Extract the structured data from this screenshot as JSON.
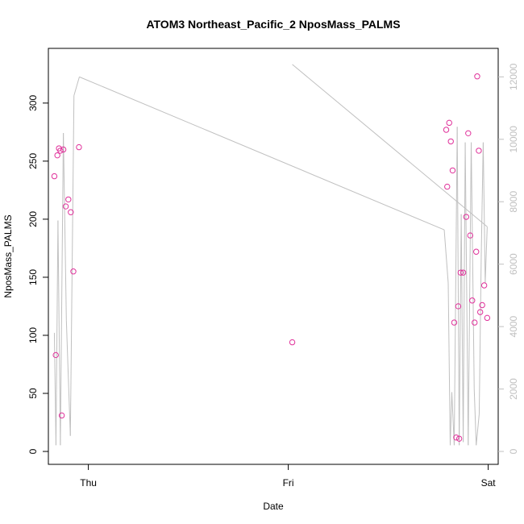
{
  "chart_data": {
    "type": "scatter",
    "title": "ATOM3 Northeast_Pacific_2 NposMass_PALMS",
    "xlabel": "Date",
    "ylabel": "NposMass_PALMS",
    "x_ticks": [
      "Thu",
      "Fri",
      "Sat"
    ],
    "x_tick_days": [
      0,
      1,
      2
    ],
    "xlim_days": [
      -0.2,
      2.05
    ],
    "ylim": [
      0,
      336
    ],
    "y_ticks": [
      0,
      50,
      100,
      150,
      200,
      250,
      300
    ],
    "y2lim": [
      0,
      12500
    ],
    "y2_ticks": [
      0,
      2000,
      4000,
      6000,
      8000,
      10000,
      12000
    ],
    "grid": false,
    "legend": "none",
    "colors": {
      "points": "#e0309a",
      "line": "#c0c0c0",
      "axis": "#000000",
      "axis_right": "#c0c0c0"
    },
    "series": [
      {
        "type": "scatter",
        "axis": "left",
        "points": [
          {
            "x": -0.17,
            "y": 237
          },
          {
            "x": -0.163,
            "y": 83
          },
          {
            "x": -0.155,
            "y": 255
          },
          {
            "x": -0.147,
            "y": 261
          },
          {
            "x": -0.14,
            "y": 259
          },
          {
            "x": -0.133,
            "y": 31
          },
          {
            "x": -0.125,
            "y": 260
          },
          {
            "x": -0.113,
            "y": 211
          },
          {
            "x": -0.1,
            "y": 217
          },
          {
            "x": -0.088,
            "y": 206
          },
          {
            "x": -0.075,
            "y": 155
          },
          {
            "x": -0.047,
            "y": 262
          },
          {
            "x": 1.02,
            "y": 94
          },
          {
            "x": 1.79,
            "y": 277
          },
          {
            "x": 1.795,
            "y": 228
          },
          {
            "x": 1.805,
            "y": 283
          },
          {
            "x": 1.813,
            "y": 267
          },
          {
            "x": 1.822,
            "y": 242
          },
          {
            "x": 1.83,
            "y": 111
          },
          {
            "x": 1.84,
            "y": 12
          },
          {
            "x": 1.85,
            "y": 125
          },
          {
            "x": 1.855,
            "y": 11
          },
          {
            "x": 1.862,
            "y": 154
          },
          {
            "x": 1.875,
            "y": 154
          },
          {
            "x": 1.89,
            "y": 202
          },
          {
            "x": 1.9,
            "y": 274
          },
          {
            "x": 1.91,
            "y": 186
          },
          {
            "x": 1.92,
            "y": 130
          },
          {
            "x": 1.932,
            "y": 111
          },
          {
            "x": 1.94,
            "y": 172
          },
          {
            "x": 1.945,
            "y": 323
          },
          {
            "x": 1.953,
            "y": 259
          },
          {
            "x": 1.96,
            "y": 120
          },
          {
            "x": 1.97,
            "y": 126
          },
          {
            "x": 1.98,
            "y": 143
          },
          {
            "x": 1.995,
            "y": 115
          }
        ]
      },
      {
        "type": "line",
        "axis": "right",
        "points": [
          {
            "x": -0.17,
            "y": 3800
          },
          {
            "x": -0.162,
            "y": 200
          },
          {
            "x": -0.152,
            "y": 7400
          },
          {
            "x": -0.14,
            "y": 200
          },
          {
            "x": -0.125,
            "y": 10200
          },
          {
            "x": -0.11,
            "y": 4200
          },
          {
            "x": -0.09,
            "y": 500
          },
          {
            "x": -0.072,
            "y": 11400
          },
          {
            "x": -0.045,
            "y": 12000
          },
          {
            "x": 1.78,
            "y": 7100
          },
          {
            "x": 1.8,
            "y": 5400
          },
          {
            "x": 1.81,
            "y": 200
          },
          {
            "x": 1.818,
            "y": 1900
          },
          {
            "x": 1.83,
            "y": 200
          },
          {
            "x": 1.845,
            "y": 10400
          },
          {
            "x": 1.855,
            "y": 200
          },
          {
            "x": 1.865,
            "y": 7600
          },
          {
            "x": 1.875,
            "y": 300
          },
          {
            "x": 1.885,
            "y": 9900
          },
          {
            "x": 1.9,
            "y": 200
          },
          {
            "x": 1.915,
            "y": 9900
          },
          {
            "x": 1.93,
            "y": 2000
          },
          {
            "x": 1.94,
            "y": 200
          },
          {
            "x": 1.955,
            "y": 1200
          },
          {
            "x": 1.965,
            "y": 6200
          },
          {
            "x": 1.975,
            "y": 9900
          },
          {
            "x": 1.985,
            "y": 5400
          },
          {
            "x": 1.995,
            "y": 7200
          },
          {
            "x": 1.02,
            "y": 12400
          }
        ]
      }
    ]
  }
}
